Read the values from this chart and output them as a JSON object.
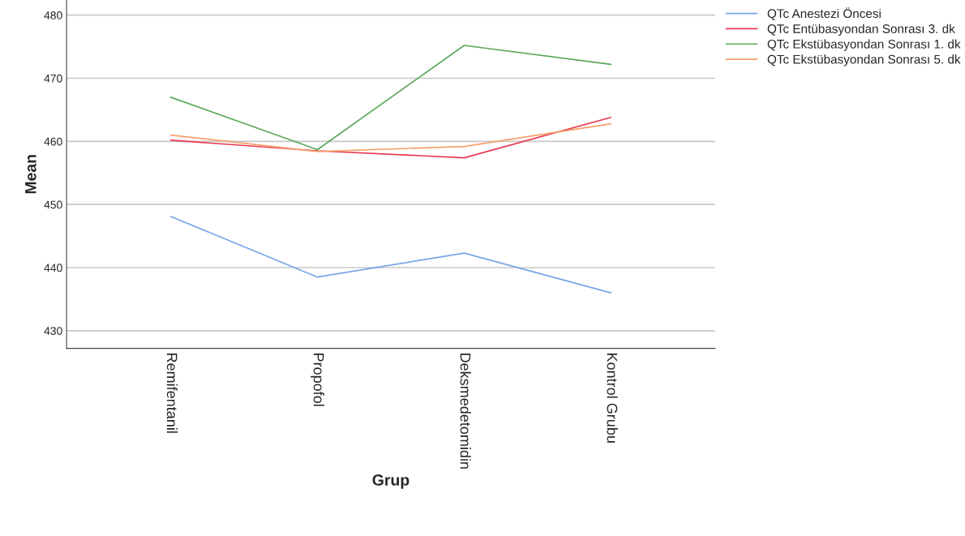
{
  "chart_data": {
    "type": "line",
    "xlabel": "Grup",
    "ylabel": "Mean",
    "categories": [
      "Remifentanil",
      "Propofol",
      "Deksmedetomidin",
      "Kontrol Grubu"
    ],
    "series": [
      {
        "name": "QTc Anestezi Öncesi",
        "color": "#79a6e8",
        "values": [
          448.1,
          438.5,
          442.3,
          436.0
        ]
      },
      {
        "name": "QTc Entübasyondan Sonrası 3. dk",
        "color": "#e8384f",
        "values": [
          460.2,
          458.5,
          457.4,
          463.8
        ]
      },
      {
        "name": "QTc Ekstübasyondan Sonrası 1. dk",
        "color": "#5ba85a",
        "values": [
          467.0,
          458.7,
          475.2,
          472.2
        ]
      },
      {
        "name": "QTc Ekstübasyondan Sonrası 5. dk",
        "color": "#f5a06b",
        "values": [
          461.0,
          458.4,
          459.2,
          462.8
        ]
      }
    ],
    "ylim": [
      427.2,
      482.4
    ],
    "yticks": [
      430,
      440,
      450,
      460,
      470,
      480
    ],
    "grid": "y",
    "legend": "top right"
  }
}
